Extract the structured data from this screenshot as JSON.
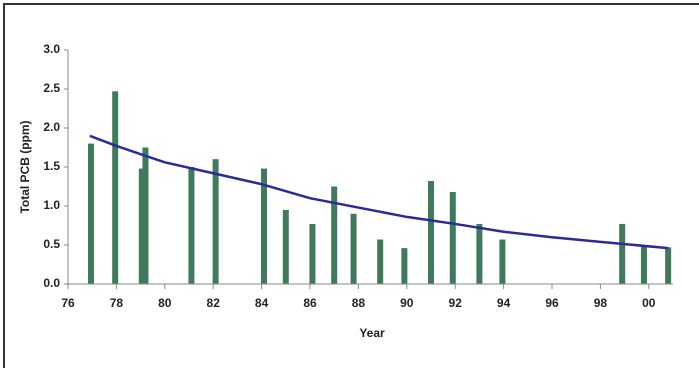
{
  "chart_data": {
    "type": "bar",
    "y_label": "Total PCB (ppm)",
    "x_label": "Year",
    "bars": {
      "color": "#3f7a5c",
      "x": [
        76.95,
        77.95,
        79.05,
        79.2,
        81.1,
        82.1,
        84.1,
        85,
        86.1,
        87,
        87.8,
        88.9,
        89.9,
        91,
        91.9,
        93,
        93.95,
        98.9,
        99.8,
        100.8
      ],
      "values": [
        1.8,
        2.47,
        1.48,
        1.75,
        1.5,
        1.6,
        1.48,
        0.95,
        0.77,
        1.25,
        0.9,
        0.57,
        0.46,
        1.32,
        1.18,
        0.77,
        0.57,
        0.77,
        0.5,
        0.47
      ]
    },
    "trend": {
      "color": "#2a2a9a",
      "x": [
        76.9,
        78,
        80,
        82,
        84,
        86,
        88,
        90,
        92,
        94,
        96,
        98,
        100.8
      ],
      "values": [
        1.9,
        1.77,
        1.56,
        1.42,
        1.28,
        1.1,
        0.98,
        0.86,
        0.77,
        0.67,
        0.6,
        0.54,
        0.46
      ]
    },
    "xlim": [
      76,
      101
    ],
    "xticks": [
      76,
      78,
      80,
      82,
      84,
      86,
      88,
      90,
      92,
      94,
      96,
      98,
      {
        "value": 100,
        "label": "00"
      }
    ],
    "ylim": [
      0,
      3
    ],
    "yticks": [
      {
        "value": 0,
        "label": "0.0"
      },
      {
        "value": 0.5,
        "label": "0.5"
      },
      {
        "value": 1,
        "label": "1.0"
      },
      {
        "value": 1.5,
        "label": "1.5"
      },
      {
        "value": 2,
        "label": "2.0"
      },
      {
        "value": 2.5,
        "label": "2.5"
      },
      {
        "value": 3,
        "label": "3.0"
      }
    ]
  }
}
